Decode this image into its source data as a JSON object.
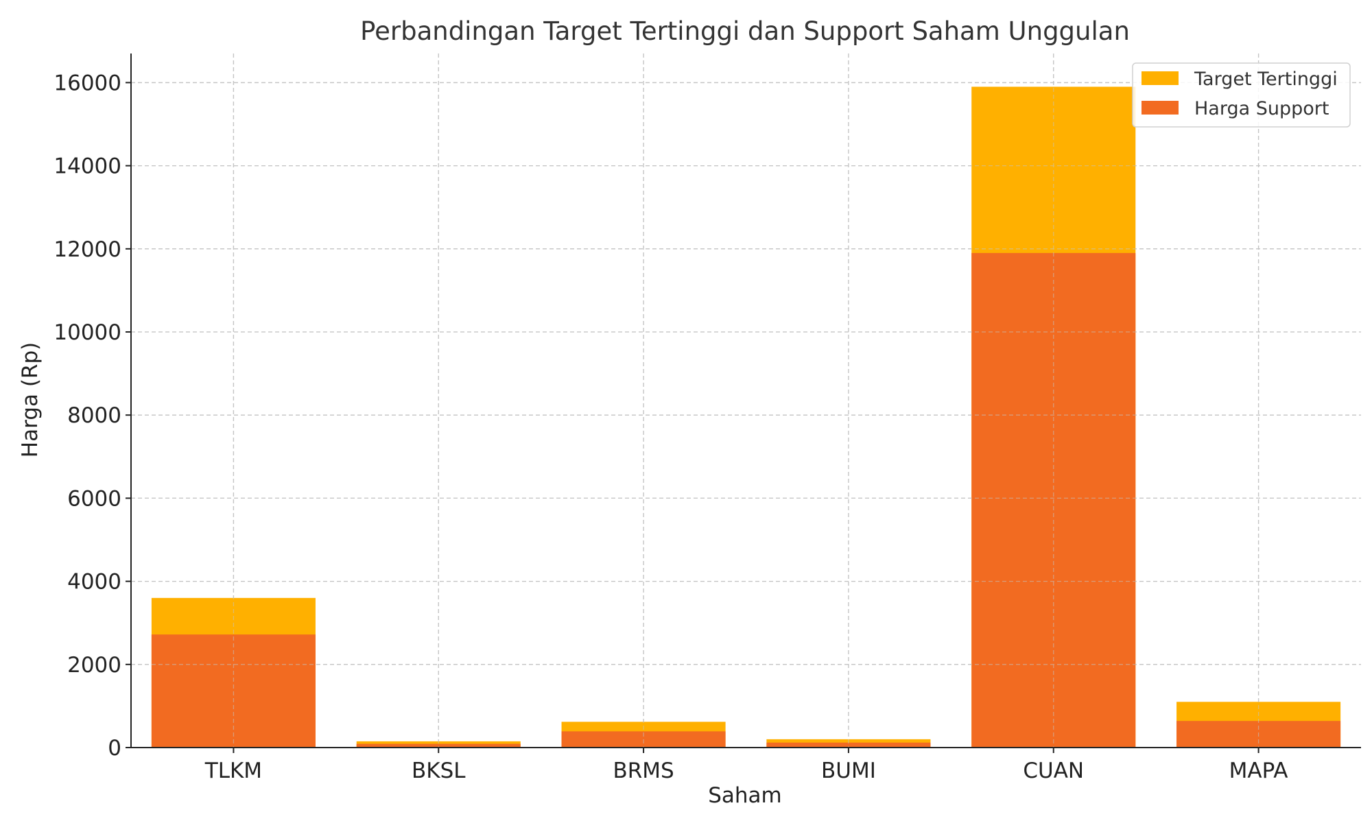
{
  "chart_data": {
    "type": "bar",
    "stacked": false,
    "overlaid": true,
    "title": "Perbandingan Target Tertinggi dan Support Saham Unggulan",
    "xlabel": "Saham",
    "ylabel": "Harga (Rp)",
    "categories": [
      "TLKM",
      "BKSL",
      "BRMS",
      "BUMI",
      "CUAN",
      "MAPA"
    ],
    "ylim": [
      0,
      16700
    ],
    "yticks": [
      0,
      2000,
      4000,
      6000,
      8000,
      10000,
      12000,
      14000,
      16000
    ],
    "grid": true,
    "legend_position": "top-right",
    "series": [
      {
        "name": "Target Tertinggi",
        "color": "#FFB000",
        "values": [
          3600,
          150,
          620,
          200,
          15900,
          1100
        ]
      },
      {
        "name": "Harga Support",
        "color": "#F26B21",
        "values": [
          2720,
          90,
          390,
          120,
          11900,
          640
        ]
      }
    ]
  }
}
